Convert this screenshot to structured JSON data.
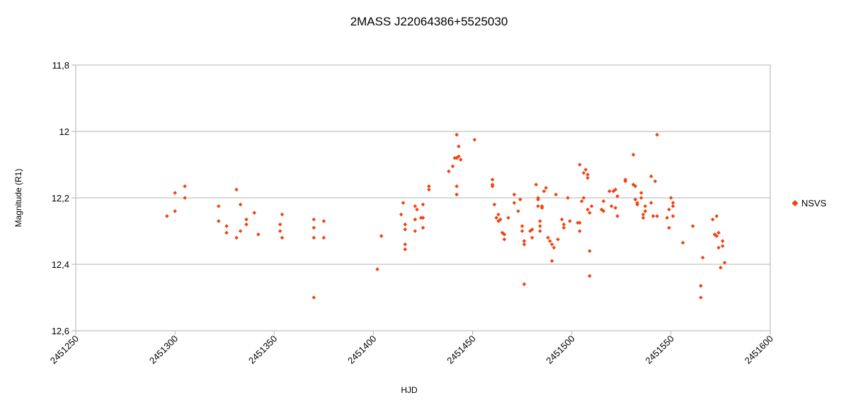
{
  "chart_data": {
    "type": "scatter",
    "title": "2MASS J22064386+5525030",
    "xlabel": "HJD",
    "ylabel": "Magnitude (R1)",
    "xlim": [
      2451250,
      2451600
    ],
    "ylim": [
      11.8,
      12.6
    ],
    "y_inverted": true,
    "grid": true,
    "legend": "right",
    "x_ticks": [
      2451250,
      2451300,
      2451350,
      2451400,
      2451450,
      2451500,
      2451550,
      2451600
    ],
    "x_tick_labels": [
      "2451250",
      "2451300",
      "2451350",
      "2451400",
      "2451450",
      "2451500",
      "2451550",
      "2451600"
    ],
    "y_ticks": [
      11.8,
      12.0,
      12.2,
      12.4,
      12.6
    ],
    "y_tick_labels": [
      "11,8",
      "12",
      "12,2",
      "12,4",
      "12,6"
    ],
    "series": [
      {
        "name": "NSVS",
        "color": "#ee4411",
        "marker": "diamond",
        "points": [
          [
            2451296,
            12.255
          ],
          [
            2451300,
            12.185
          ],
          [
            2451300,
            12.24
          ],
          [
            2451305,
            12.165
          ],
          [
            2451305,
            12.2
          ],
          [
            2451322,
            12.225
          ],
          [
            2451322,
            12.27
          ],
          [
            2451326,
            12.285
          ],
          [
            2451326,
            12.305
          ],
          [
            2451331,
            12.175
          ],
          [
            2451331,
            12.32
          ],
          [
            2451333,
            12.22
          ],
          [
            2451333,
            12.3
          ],
          [
            2451336,
            12.265
          ],
          [
            2451336,
            12.28
          ],
          [
            2451340,
            12.245
          ],
          [
            2451342,
            12.31
          ],
          [
            2451353,
            12.28
          ],
          [
            2451353,
            12.3
          ],
          [
            2451354,
            12.25
          ],
          [
            2451354,
            12.32
          ],
          [
            2451370,
            12.265
          ],
          [
            2451370,
            12.29
          ],
          [
            2451370,
            12.32
          ],
          [
            2451370,
            12.5
          ],
          [
            2451375,
            12.27
          ],
          [
            2451375,
            12.32
          ],
          [
            2451402,
            12.415
          ],
          [
            2451404,
            12.315
          ],
          [
            2451414,
            12.25
          ],
          [
            2451415,
            12.215
          ],
          [
            2451416,
            12.28
          ],
          [
            2451416,
            12.295
          ],
          [
            2451416,
            12.34
          ],
          [
            2451416,
            12.355
          ],
          [
            2451421,
            12.225
          ],
          [
            2451421,
            12.265
          ],
          [
            2451421,
            12.3
          ],
          [
            2451422,
            12.235
          ],
          [
            2451424,
            12.26
          ],
          [
            2451425,
            12.26
          ],
          [
            2451425,
            12.29
          ],
          [
            2451425,
            12.22
          ],
          [
            2451428,
            12.165
          ],
          [
            2451428,
            12.175
          ],
          [
            2451438,
            12.12
          ],
          [
            2451440,
            12.105
          ],
          [
            2451441,
            12.08
          ],
          [
            2451442,
            12.01
          ],
          [
            2451442,
            12.08
          ],
          [
            2451442,
            12.165
          ],
          [
            2451442,
            12.19
          ],
          [
            2451443,
            12.045
          ],
          [
            2451443,
            12.075
          ],
          [
            2451444,
            12.085
          ],
          [
            2451451,
            12.025
          ],
          [
            2451460,
            12.145
          ],
          [
            2451460,
            12.16
          ],
          [
            2451460,
            12.165
          ],
          [
            2451461,
            12.22
          ],
          [
            2451462,
            12.26
          ],
          [
            2451463,
            12.25
          ],
          [
            2451463,
            12.27
          ],
          [
            2451464,
            12.265
          ],
          [
            2451465,
            12.305
          ],
          [
            2451466,
            12.31
          ],
          [
            2451466,
            12.325
          ],
          [
            2451468,
            12.26
          ],
          [
            2451471,
            12.19
          ],
          [
            2451471,
            12.215
          ],
          [
            2451473,
            12.24
          ],
          [
            2451474,
            12.205
          ],
          [
            2451475,
            12.285
          ],
          [
            2451475,
            12.3
          ],
          [
            2451476,
            12.33
          ],
          [
            2451476,
            12.34
          ],
          [
            2451476,
            12.46
          ],
          [
            2451479,
            12.3
          ],
          [
            2451480,
            12.295
          ],
          [
            2451480,
            12.32
          ],
          [
            2451482,
            12.16
          ],
          [
            2451483,
            12.2
          ],
          [
            2451483,
            12.205
          ],
          [
            2451483,
            12.225
          ],
          [
            2451484,
            12.27
          ],
          [
            2451484,
            12.285
          ],
          [
            2451484,
            12.3
          ],
          [
            2451485,
            12.23
          ],
          [
            2451485,
            12.225
          ],
          [
            2451486,
            12.18
          ],
          [
            2451487,
            12.17
          ],
          [
            2451488,
            12.32
          ],
          [
            2451489,
            12.33
          ],
          [
            2451490,
            12.34
          ],
          [
            2451490,
            12.39
          ],
          [
            2451491,
            12.35
          ],
          [
            2451492,
            12.19
          ],
          [
            2451493,
            12.325
          ],
          [
            2451495,
            12.265
          ],
          [
            2451496,
            12.28
          ],
          [
            2451496,
            12.29
          ],
          [
            2451498,
            12.2
          ],
          [
            2451499,
            12.27
          ],
          [
            2451503,
            12.275
          ],
          [
            2451504,
            12.1
          ],
          [
            2451504,
            12.3
          ],
          [
            2451504,
            12.275
          ],
          [
            2451505,
            12.21
          ],
          [
            2451506,
            12.125
          ],
          [
            2451506,
            12.2
          ],
          [
            2451507,
            12.115
          ],
          [
            2451508,
            12.14
          ],
          [
            2451508,
            12.13
          ],
          [
            2451508,
            12.235
          ],
          [
            2451509,
            12.245
          ],
          [
            2451509,
            12.36
          ],
          [
            2451509,
            12.435
          ],
          [
            2451510,
            12.225
          ],
          [
            2451515,
            12.235
          ],
          [
            2451516,
            12.24
          ],
          [
            2451516,
            12.21
          ],
          [
            2451519,
            12.18
          ],
          [
            2451520,
            12.225
          ],
          [
            2451521,
            12.18
          ],
          [
            2451522,
            12.175
          ],
          [
            2451522,
            12.23
          ],
          [
            2451523,
            12.195
          ],
          [
            2451523,
            12.255
          ],
          [
            2451527,
            12.145
          ],
          [
            2451527,
            12.15
          ],
          [
            2451531,
            12.07
          ],
          [
            2451531,
            12.16
          ],
          [
            2451532,
            12.165
          ],
          [
            2451532,
            12.205
          ],
          [
            2451533,
            12.215
          ],
          [
            2451533,
            12.22
          ],
          [
            2451535,
            12.185
          ],
          [
            2451535,
            12.2
          ],
          [
            2451536,
            12.25
          ],
          [
            2451536,
            12.26
          ],
          [
            2451537,
            12.225
          ],
          [
            2451537,
            12.24
          ],
          [
            2451540,
            12.135
          ],
          [
            2451540,
            12.215
          ],
          [
            2451541,
            12.255
          ],
          [
            2451542,
            12.15
          ],
          [
            2451543,
            12.01
          ],
          [
            2451543,
            12.255
          ],
          [
            2451548,
            12.26
          ],
          [
            2451549,
            12.29
          ],
          [
            2451549,
            12.235
          ],
          [
            2451550,
            12.2
          ],
          [
            2451551,
            12.215
          ],
          [
            2451551,
            12.255
          ],
          [
            2451551,
            12.225
          ],
          [
            2451556,
            12.335
          ],
          [
            2451561,
            12.285
          ],
          [
            2451565,
            12.465
          ],
          [
            2451565,
            12.5
          ],
          [
            2451566,
            12.38
          ],
          [
            2451571,
            12.265
          ],
          [
            2451572,
            12.31
          ],
          [
            2451573,
            12.255
          ],
          [
            2451573,
            12.315
          ],
          [
            2451574,
            12.35
          ],
          [
            2451574,
            12.305
          ],
          [
            2451575,
            12.41
          ],
          [
            2451576,
            12.345
          ],
          [
            2451576,
            12.33
          ],
          [
            2451577,
            12.395
          ]
        ]
      }
    ]
  }
}
